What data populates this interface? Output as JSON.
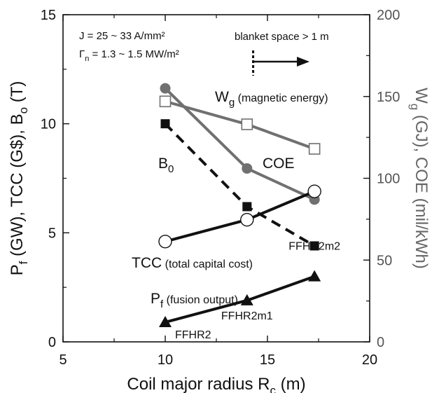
{
  "chart_data": {
    "type": "line",
    "xlabel": "Coil major radius R",
    "xlabel_sub": "c",
    "xlabel_unit": " (m)",
    "xlim": [
      5,
      20
    ],
    "x_ticks": [
      5,
      10,
      15,
      20
    ],
    "x_tick_labels": [
      "5",
      "10",
      "15",
      "20"
    ],
    "ylim_left": [
      0,
      15
    ],
    "y_left_ticks": [
      0,
      5,
      10,
      15
    ],
    "y_left_tick_labels": [
      "0",
      "5",
      "10",
      "15"
    ],
    "ylim_right": [
      0,
      200
    ],
    "y_right_ticks": [
      0,
      50,
      100,
      150,
      200
    ],
    "y_right_tick_labels": [
      "0",
      "50",
      "100",
      "150",
      "200"
    ],
    "ylabel_left": {
      "p1": "P",
      "p1_sub": "f",
      "p2": " (GW),  TCC (G$),  B",
      "p2_sub": "o",
      "p3": " (T)"
    },
    "ylabel_right": {
      "p1": "W",
      "p1_sub": "g",
      "p2": " (GJ),  COE (mil/kWh)"
    },
    "annotations": {
      "j_line": "J = 25 ~ 33 A/mm²",
      "gamma_sym": "Γ",
      "gamma_sub": "n",
      "gamma_rest": " = 1.3 ~ 1.5 MW/m²",
      "blanket": "blanket space > 1 m",
      "blanket_x": 14.3
    },
    "series": [
      {
        "id": "wg",
        "axis": "right",
        "marker": "open-square",
        "line": "solid",
        "color": "#707070",
        "x": [
          10,
          14,
          17.3
        ],
        "y": [
          147,
          133,
          118
        ],
        "label_main": "W",
        "label_sub": "g",
        "label_desc": " (magnetic energy)"
      },
      {
        "id": "coe",
        "axis": "right",
        "marker": "filled-circle",
        "line": "solid",
        "color": "#707070",
        "x": [
          10,
          14,
          17.3
        ],
        "y": [
          155,
          106,
          87
        ],
        "label_main": "COE",
        "label_sub": "",
        "label_desc": ""
      },
      {
        "id": "b0",
        "axis": "left",
        "marker": "filled-square",
        "line": "dashed",
        "color": "#111111",
        "x": [
          10,
          14,
          17.3
        ],
        "y": [
          10.0,
          6.2,
          4.4
        ],
        "label_main": "B",
        "label_sub": "0",
        "label_desc": ""
      },
      {
        "id": "tcc",
        "axis": "left",
        "marker": "open-circle",
        "line": "solid",
        "color": "#111111",
        "x": [
          10,
          14,
          17.3
        ],
        "y": [
          4.6,
          5.6,
          6.9
        ],
        "label_main": "TCC",
        "label_sub": "",
        "label_desc": " (total capital cost)"
      },
      {
        "id": "pf",
        "axis": "left",
        "marker": "filled-triangle",
        "line": "solid",
        "color": "#111111",
        "x": [
          10,
          14,
          17.3
        ],
        "y": [
          0.9,
          1.9,
          3.0
        ],
        "label_main": "P",
        "label_sub": "f",
        "label_desc": " (fusion output)"
      }
    ],
    "point_labels": [
      "FFHR2",
      "FFHR2m1",
      "FFHR2m2"
    ]
  }
}
